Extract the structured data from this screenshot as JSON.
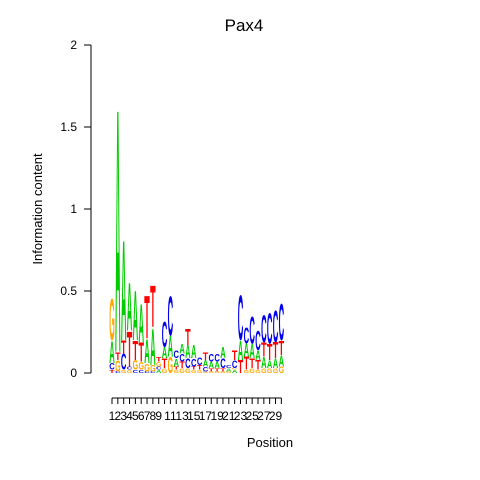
{
  "chart_data": {
    "type": "sequence-logo",
    "title": "Pax4",
    "xlabel": "Position",
    "ylabel": "Information content",
    "ylim": [
      0,
      2
    ],
    "y_ticks": [
      "0",
      "0.5",
      "1",
      "1.5",
      "2"
    ],
    "x_tick_labels": [
      "1",
      "2",
      "3",
      "4",
      "5",
      "6",
      "7",
      "8",
      "9",
      "11",
      "13",
      "15",
      "17",
      "19",
      "21",
      "23",
      "25",
      "27",
      "29"
    ],
    "x_ticks": [
      1,
      2,
      3,
      4,
      5,
      6,
      7,
      8,
      9,
      11,
      13,
      15,
      17,
      19,
      21,
      23,
      25,
      27,
      29
    ],
    "num_positions": 30,
    "colors": {
      "A": "#00cc00",
      "C": "#0000ee",
      "G": "#ffa500",
      "T": "#ff0000"
    },
    "positions": [
      {
        "pos": 1,
        "letters": [
          [
            "T",
            0.02
          ],
          [
            "C",
            0.04
          ],
          [
            "A",
            0.14
          ],
          [
            "G",
            0.26
          ]
        ]
      },
      {
        "pos": 2,
        "letters": [
          [
            "C",
            0.01
          ],
          [
            "G",
            0.07
          ],
          [
            "T",
            0.05
          ],
          [
            "A",
            1.53
          ]
        ]
      },
      {
        "pos": 3,
        "letters": [
          [
            "G",
            0.02
          ],
          [
            "C",
            0.1
          ],
          [
            "T",
            0.08
          ],
          [
            "A",
            0.63
          ]
        ]
      },
      {
        "pos": 4,
        "letters": [
          [
            "G",
            0.02
          ],
          [
            "C",
            0.02
          ],
          [
            "T",
            0.22
          ],
          [
            "A",
            0.3
          ]
        ]
      },
      {
        "pos": 5,
        "letters": [
          [
            "C",
            0.02
          ],
          [
            "G",
            0.06
          ],
          [
            "T",
            0.12
          ],
          [
            "A",
            0.31
          ]
        ]
      },
      {
        "pos": 6,
        "letters": [
          [
            "C",
            0.02
          ],
          [
            "G",
            0.05
          ],
          [
            "T",
            0.12
          ],
          [
            "A",
            0.24
          ]
        ]
      },
      {
        "pos": 7,
        "letters": [
          [
            "C",
            0.01
          ],
          [
            "G",
            0.05
          ],
          [
            "A",
            0.15
          ],
          [
            "T",
            0.27
          ]
        ]
      },
      {
        "pos": 8,
        "letters": [
          [
            "C",
            0.01
          ],
          [
            "G",
            0.04
          ],
          [
            "A",
            0.23
          ],
          [
            "T",
            0.26
          ]
        ]
      },
      {
        "pos": 9,
        "letters": [
          [
            "A",
            0.02
          ],
          [
            "C",
            0.02
          ],
          [
            "G",
            0.03
          ],
          [
            "T",
            0.03
          ]
        ]
      },
      {
        "pos": 10,
        "letters": [
          [
            "G",
            0.03
          ],
          [
            "T",
            0.06
          ],
          [
            "A",
            0.07
          ],
          [
            "C",
            0.16
          ]
        ]
      },
      {
        "pos": 11,
        "letters": [
          [
            "G",
            0.1
          ],
          [
            "A",
            0.13
          ],
          [
            "C",
            0.25
          ]
        ]
      },
      {
        "pos": 12,
        "letters": [
          [
            "G",
            0.02
          ],
          [
            "T",
            0.02
          ],
          [
            "A",
            0.05
          ],
          [
            "C",
            0.05
          ]
        ]
      },
      {
        "pos": 13,
        "letters": [
          [
            "G",
            0.03
          ],
          [
            "T",
            0.04
          ],
          [
            "C",
            0.05
          ],
          [
            "A",
            0.06
          ]
        ]
      },
      {
        "pos": 14,
        "letters": [
          [
            "G",
            0.03
          ],
          [
            "C",
            0.06
          ],
          [
            "A",
            0.08
          ],
          [
            "T",
            0.1
          ]
        ]
      },
      {
        "pos": 15,
        "letters": [
          [
            "G",
            0.02
          ],
          [
            "T",
            0.02
          ],
          [
            "C",
            0.05
          ],
          [
            "A",
            0.08
          ]
        ]
      },
      {
        "pos": 16,
        "letters": [
          [
            "G",
            0.02
          ],
          [
            "T",
            0.03
          ],
          [
            "C",
            0.05
          ]
        ]
      },
      {
        "pos": 17,
        "letters": [
          [
            "G",
            0.01
          ],
          [
            "C",
            0.03
          ],
          [
            "A",
            0.04
          ],
          [
            "T",
            0.05
          ]
        ]
      },
      {
        "pos": 18,
        "letters": [
          [
            "G",
            0.01
          ],
          [
            "T",
            0.02
          ],
          [
            "A",
            0.04
          ],
          [
            "C",
            0.05
          ]
        ]
      },
      {
        "pos": 19,
        "letters": [
          [
            "G",
            0.01
          ],
          [
            "T",
            0.02
          ],
          [
            "A",
            0.04
          ],
          [
            "C",
            0.05
          ]
        ]
      },
      {
        "pos": 20,
        "letters": [
          [
            "G",
            0.01
          ],
          [
            "T",
            0.02
          ],
          [
            "C",
            0.06
          ],
          [
            "A",
            0.07
          ]
        ]
      },
      {
        "pos": 21,
        "letters": [
          [
            "G",
            0.01
          ],
          [
            "A",
            0.02
          ],
          [
            "C",
            0.02
          ]
        ]
      },
      {
        "pos": 22,
        "letters": [
          [
            "A",
            0.02
          ],
          [
            "G",
            0.01
          ],
          [
            "C",
            0.05
          ],
          [
            "T",
            0.06
          ]
        ]
      },
      {
        "pos": 23,
        "letters": [
          [
            "T",
            0.08
          ],
          [
            "A",
            0.12
          ],
          [
            "C",
            0.28
          ]
        ]
      },
      {
        "pos": 24,
        "letters": [
          [
            "G",
            0.02
          ],
          [
            "T",
            0.08
          ],
          [
            "A",
            0.08
          ],
          [
            "C",
            0.1
          ]
        ]
      },
      {
        "pos": 25,
        "letters": [
          [
            "G",
            0.03
          ],
          [
            "T",
            0.06
          ],
          [
            "A",
            0.09
          ],
          [
            "C",
            0.17
          ]
        ]
      },
      {
        "pos": 26,
        "letters": [
          [
            "G",
            0.02
          ],
          [
            "T",
            0.06
          ],
          [
            "A",
            0.06
          ],
          [
            "C",
            0.12
          ]
        ]
      },
      {
        "pos": 27,
        "letters": [
          [
            "G",
            0.03
          ],
          [
            "A",
            0.07
          ],
          [
            "T",
            0.09
          ],
          [
            "C",
            0.17
          ]
        ]
      },
      {
        "pos": 28,
        "letters": [
          [
            "G",
            0.03
          ],
          [
            "A",
            0.05
          ],
          [
            "T",
            0.1
          ],
          [
            "C",
            0.19
          ]
        ]
      },
      {
        "pos": 29,
        "letters": [
          [
            "G",
            0.03
          ],
          [
            "A",
            0.06
          ],
          [
            "T",
            0.1
          ],
          [
            "C",
            0.2
          ]
        ]
      },
      {
        "pos": 30,
        "letters": [
          [
            "G",
            0.04
          ],
          [
            "A",
            0.07
          ],
          [
            "T",
            0.09
          ],
          [
            "C",
            0.23
          ]
        ]
      }
    ]
  }
}
